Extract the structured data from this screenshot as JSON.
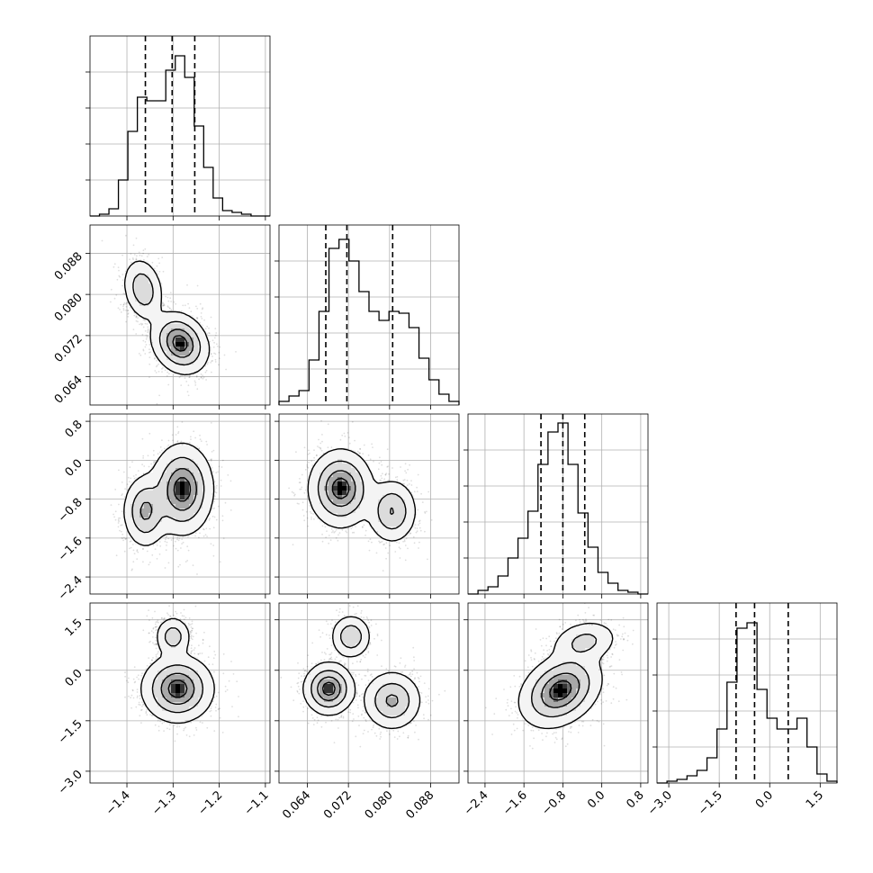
{
  "chart_data": {
    "type": "corner",
    "grid": true,
    "parameters": [
      {
        "range": [
          -1.48,
          -1.09
        ],
        "ticks": [
          -1.4,
          -1.3,
          -1.2,
          -1.1
        ],
        "tick_labels": [
          "−1.4",
          "−1.3",
          "−1.2",
          "−1.1"
        ],
        "quantiles": [
          -1.36,
          -1.302,
          -1.253
        ],
        "histogram": [
          0.0,
          0.01,
          0.04,
          0.2,
          0.47,
          0.66,
          0.64,
          0.64,
          0.81,
          0.89,
          0.77,
          0.5,
          0.27,
          0.1,
          0.03,
          0.02,
          0.01,
          0.0,
          0.0
        ]
      },
      {
        "range": [
          0.0585,
          0.0935
        ],
        "ticks": [
          0.064,
          0.072,
          0.08,
          0.088
        ],
        "tick_labels": [
          "0.064",
          "0.072",
          "0.080",
          "0.088"
        ],
        "quantiles": [
          0.0676,
          0.0717,
          0.0806
        ],
        "histogram": [
          0.02,
          0.05,
          0.08,
          0.25,
          0.52,
          0.87,
          0.92,
          0.8,
          0.63,
          0.52,
          0.47,
          0.52,
          0.51,
          0.43,
          0.26,
          0.14,
          0.06,
          0.02
        ]
      },
      {
        "range": [
          -2.75,
          0.95
        ],
        "ticks": [
          -2.4,
          -1.6,
          -0.8,
          0.0,
          0.8
        ],
        "tick_labels": [
          "−2.4",
          "−1.6",
          "−0.8",
          "0.0",
          "0.8"
        ],
        "quantiles": [
          -1.25,
          -0.8,
          -0.35
        ],
        "histogram": [
          0.0,
          0.02,
          0.04,
          0.1,
          0.2,
          0.31,
          0.46,
          0.72,
          0.9,
          0.95,
          0.72,
          0.45,
          0.26,
          0.12,
          0.06,
          0.02,
          0.01,
          0.0
        ]
      },
      {
        "range": [
          -3.35,
          2.0
        ],
        "ticks": [
          -3.0,
          -1.5,
          0.0,
          1.5
        ],
        "tick_labels": [
          "−3.0",
          "−1.5",
          "0.0",
          "1.5"
        ],
        "quantiles": [
          -1.0,
          -0.45,
          0.55
        ],
        "histogram": [
          0.0,
          0.01,
          0.02,
          0.04,
          0.07,
          0.14,
          0.3,
          0.56,
          0.86,
          0.89,
          0.52,
          0.36,
          0.3,
          0.3,
          0.36,
          0.2,
          0.05,
          0.01
        ]
      }
    ],
    "blobs": {
      "1_0": [
        {
          "mx": -1.365,
          "my": 0.081,
          "sx": 0.02,
          "sy": 0.0028,
          "rho": -0.2,
          "w": 0.35
        },
        {
          "mx": -1.285,
          "my": 0.0705,
          "sx": 0.028,
          "sy": 0.0027,
          "rho": -0.2,
          "w": 0.65
        }
      ],
      "2_0": [
        {
          "mx": -1.28,
          "my": -0.6,
          "sx": 0.03,
          "sy": 0.42,
          "rho": 0.0,
          "w": 0.6
        },
        {
          "mx": -1.36,
          "my": -1.05,
          "sx": 0.022,
          "sy": 0.34,
          "rho": 0.0,
          "w": 0.4
        }
      ],
      "2_1": [
        {
          "mx": 0.0705,
          "my": -0.58,
          "sx": 0.0028,
          "sy": 0.36,
          "rho": 0.0,
          "w": 0.62
        },
        {
          "mx": 0.0805,
          "my": -1.05,
          "sx": 0.0022,
          "sy": 0.3,
          "rho": 0.0,
          "w": 0.38
        }
      ],
      "3_0": [
        {
          "mx": -1.29,
          "my": -0.55,
          "sx": 0.035,
          "sy": 0.45,
          "rho": 0.0,
          "w": 0.68
        },
        {
          "mx": -1.3,
          "my": 1.0,
          "sx": 0.018,
          "sy": 0.28,
          "rho": 0.0,
          "w": 0.32
        }
      ],
      "3_1": [
        {
          "mx": 0.0682,
          "my": -0.55,
          "sx": 0.0022,
          "sy": 0.35,
          "rho": 0.0,
          "w": 0.45
        },
        {
          "mx": 0.0725,
          "my": 1.0,
          "sx": 0.0018,
          "sy": 0.3,
          "rho": 0.0,
          "w": 0.25
        },
        {
          "mx": 0.0805,
          "my": -0.9,
          "sx": 0.0026,
          "sy": 0.4,
          "rho": 0.0,
          "w": 0.3
        }
      ],
      "3_2": [
        {
          "mx": -0.85,
          "my": -0.6,
          "sx": 0.38,
          "sy": 0.5,
          "rho": 0.3,
          "w": 0.72
        },
        {
          "mx": -0.35,
          "my": 0.85,
          "sx": 0.32,
          "sy": 0.3,
          "rho": 0.2,
          "w": 0.28
        }
      ]
    }
  }
}
